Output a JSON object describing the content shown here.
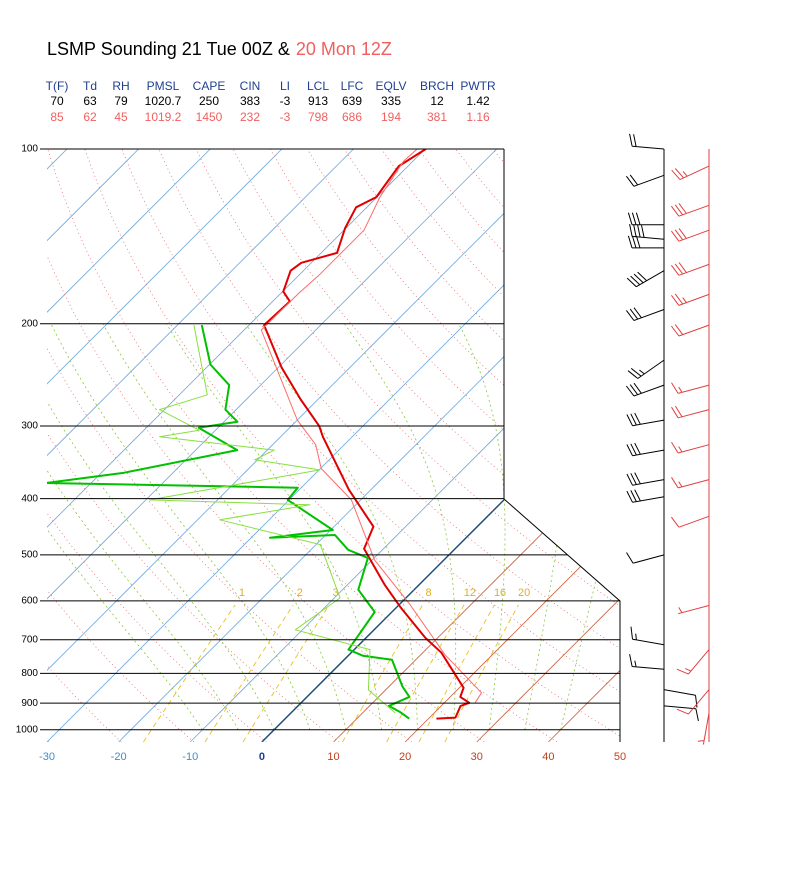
{
  "chart_data": {
    "type": "skewt",
    "title": "LSMP Sounding 21 Tue 00Z &",
    "title_second": "20 Mon 12Z",
    "stats": {
      "columns": [
        "T(F)",
        "Td",
        "RH",
        "PMSL",
        "CAPE",
        "CIN",
        "LI",
        "LCL",
        "LFC",
        "EQLV",
        "BRCH",
        "PWTR"
      ],
      "rows": [
        [
          70,
          63,
          79,
          1020.7,
          250,
          383,
          -3,
          913,
          639,
          335,
          12,
          1.42
        ],
        [
          85,
          62,
          45,
          1019.2,
          1450,
          232,
          -3,
          798,
          686,
          194,
          381,
          1.16
        ]
      ]
    },
    "xlim": [
      -30,
      50
    ],
    "xticks": [
      -30,
      -20,
      -10,
      0,
      10,
      20,
      30,
      40,
      50
    ],
    "ylim": [
      1050,
      100
    ],
    "yticks": [
      100,
      200,
      300,
      400,
      500,
      600,
      700,
      800,
      900,
      1000
    ],
    "log_scale": true,
    "mixing_ratio_lines": [
      1,
      2,
      3,
      8,
      12,
      16,
      20
    ],
    "series": [
      {
        "color": "#e00000",
        "width": 2,
        "pressure": [
          957,
          953,
          910,
          899,
          878,
          847,
          737,
          695,
          617,
          563,
          488,
          447,
          386,
          313,
          300,
          270,
          238,
          201,
          183,
          176,
          162,
          157,
          151,
          137,
          126,
          121,
          107,
          100
        ],
        "values": [
          21.1,
          23.6,
          22.7,
          23.5,
          21.4,
          20.6,
          12.6,
          8.3,
          0.7,
          -4.8,
          -12.7,
          -14.5,
          -23.1,
          -34.1,
          -36.1,
          -42.4,
          -49.5,
          -57.9,
          -57.6,
          -59.9,
          -61.8,
          -61.4,
          -57.8,
          -60.1,
          -61.5,
          -60.1,
          -61.3,
          -59.9
        ]
      },
      {
        "color": "#00c000",
        "width": 2,
        "pressure": [
          957,
          931,
          910,
          878,
          843,
          758,
          746,
          728,
          627,
          574,
          506,
          490,
          462,
          467,
          453,
          402,
          383,
          376,
          361,
          330,
          302,
          295,
          281,
          255,
          235,
          201
        ],
        "values": [
          17.3,
          15.0,
          12.7,
          14.3,
          11.9,
          6.7,
          2.1,
          -0.8,
          -2.4,
          -7.8,
          -10.9,
          -14.8,
          -18.7,
          -27.4,
          -19.7,
          -30.2,
          -30.5,
          -66.3,
          -56.8,
          -44.2,
          -52.7,
          -48.1,
          -51.5,
          -54.4,
          -59.9,
          -66.6
        ]
      },
      {
        "color": "#ff6a6a",
        "width": 1,
        "pressure": [
          899,
          864,
          743,
          609,
          510,
          402,
          355,
          323,
          293,
          205,
          177,
          165,
          138,
          121,
          105,
          100
        ],
        "values": [
          24.3,
          23.8,
          13.4,
          1.5,
          -9.7,
          -21.3,
          -29.9,
          -34.0,
          -40.0,
          -57.6,
          -57.5,
          -57.2,
          -57.2,
          -59.6,
          -61.3,
          -61.1
        ]
      },
      {
        "color": "#88e040",
        "width": 1,
        "pressure": [
          935,
          854,
          728,
          673,
          593,
          480,
          435,
          410,
          402,
          357,
          343,
          330,
          313,
          305,
          281,
          265,
          201
        ],
        "values": [
          14.5,
          7.6,
          2.2,
          -11.0,
          -9.2,
          -19.4,
          -36.9,
          -26.4,
          -49.5,
          -29.9,
          -40.4,
          -39.0,
          -56.9,
          -52.3,
          -60.7,
          -56.1,
          -67.7
        ]
      }
    ],
    "winds": [
      {
        "color": "#000000",
        "pressure": [
          100,
          111,
          135,
          143,
          148,
          162,
          189,
          231,
          255,
          293,
          330,
          371,
          397,
          500,
          714,
          787,
          853,
          910
        ],
        "speed": [
          20,
          20,
          30,
          40,
          30,
          40,
          30,
          25,
          30,
          30,
          30,
          30,
          30,
          10,
          15,
          15,
          10,
          10
        ],
        "direction": [
          275,
          250,
          270,
          275,
          270,
          240,
          250,
          235,
          250,
          260,
          260,
          260,
          260,
          255,
          280,
          275,
          100,
          95
        ]
      },
      {
        "color": "#e04040",
        "pressure": [
          107,
          125,
          138,
          158,
          178,
          201,
          255,
          281,
          323,
          371,
          429,
          611,
          728,
          853,
          936
        ],
        "speed": [
          25,
          30,
          30,
          30,
          25,
          20,
          15,
          20,
          15,
          15,
          10,
          5,
          15,
          10,
          5
        ],
        "direction": [
          245,
          250,
          250,
          250,
          250,
          250,
          255,
          255,
          255,
          255,
          250,
          255,
          220,
          220,
          190
        ]
      }
    ]
  }
}
